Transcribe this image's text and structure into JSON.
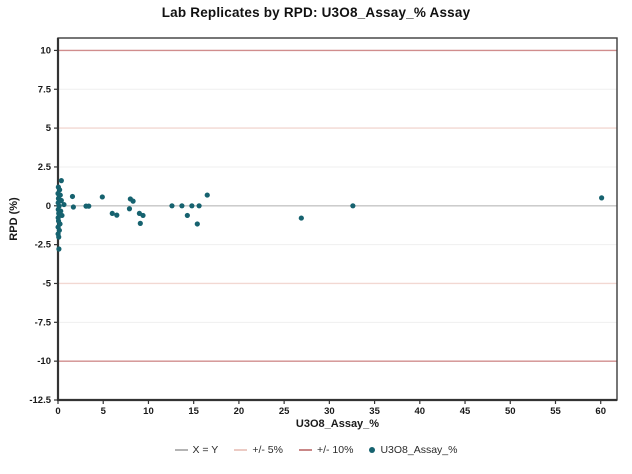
{
  "chart_data": {
    "type": "scatter",
    "title": "Lab Replicates by RPD: U3O8_Assay_% Assay",
    "xlabel": "U3O8_Assay_%",
    "ylabel": "RPD (%)",
    "xlim": [
      0,
      61.8
    ],
    "ylim": [
      -12.5,
      10.8
    ],
    "x_ticks": [
      0,
      5,
      10,
      15,
      20,
      25,
      30,
      35,
      40,
      45,
      50,
      55,
      60
    ],
    "y_ticks": [
      10,
      7.5,
      5,
      2.5,
      0,
      -2.5,
      -5,
      -7.5,
      -10,
      -12.5
    ],
    "grid": "horizontal reference lines only",
    "point_color": "#16626f",
    "minor_gridline_color": "#efefef",
    "minor_gridlines": [
      7.5,
      2.5,
      -2.5,
      -7.5
    ],
    "reference_lines": [
      {
        "name": "X = Y",
        "y": 0,
        "color": "#c4c4c4"
      },
      {
        "name": "+/- 5%",
        "y": 5,
        "color": "#f2d8d2"
      },
      {
        "name": "+/- 5%",
        "y": -5,
        "color": "#f2d8d2"
      },
      {
        "name": "+/- 10%",
        "y": 10,
        "color": "#d08d8d"
      },
      {
        "name": "+/- 10%",
        "y": -10,
        "color": "#d08d8d"
      }
    ],
    "series": [
      {
        "name": "U3O8_Assay_%",
        "points": [
          [
            0.04,
            1.2
          ],
          [
            0.37,
            1.62
          ],
          [
            0.18,
            1.03
          ],
          [
            0.0,
            0.79
          ],
          [
            0.25,
            0.69
          ],
          [
            0.05,
            0.47
          ],
          [
            0.37,
            0.34
          ],
          [
            0.02,
            0.19
          ],
          [
            0.66,
            0.08
          ],
          [
            0.12,
            -0.02
          ],
          [
            0.03,
            -0.24
          ],
          [
            0.3,
            -0.34
          ],
          [
            0.08,
            -0.49
          ],
          [
            0.44,
            -0.62
          ],
          [
            0.02,
            -0.77
          ],
          [
            0.06,
            -0.98
          ],
          [
            0.22,
            -1.17
          ],
          [
            0.01,
            -1.37
          ],
          [
            0.15,
            -1.58
          ],
          [
            0.01,
            -1.81
          ],
          [
            0.08,
            -2.01
          ],
          [
            0.1,
            -2.78
          ],
          [
            1.6,
            0.6
          ],
          [
            1.7,
            -0.08
          ],
          [
            3.1,
            -0.02
          ],
          [
            3.4,
            -0.02
          ],
          [
            4.9,
            0.57
          ],
          [
            6.0,
            -0.49
          ],
          [
            6.5,
            -0.6
          ],
          [
            7.9,
            -0.19
          ],
          [
            8.0,
            0.44
          ],
          [
            8.3,
            0.3
          ],
          [
            9.0,
            -0.49
          ],
          [
            9.4,
            -0.62
          ],
          [
            9.1,
            -1.13
          ],
          [
            12.6,
            0.0
          ],
          [
            13.7,
            0.0
          ],
          [
            14.8,
            0.0
          ],
          [
            15.6,
            0.0
          ],
          [
            14.3,
            -0.62
          ],
          [
            15.4,
            -1.17
          ],
          [
            16.5,
            0.69
          ],
          [
            26.9,
            -0.79
          ],
          [
            32.6,
            0.0
          ],
          [
            60.1,
            0.51
          ]
        ]
      }
    ],
    "legend": {
      "position": "bottom",
      "items": [
        {
          "label": "X = Y",
          "swatch": "line",
          "color": "#b4b4b4"
        },
        {
          "label": "+/- 5%",
          "swatch": "line",
          "color": "#eccbc4"
        },
        {
          "label": "+/- 10%",
          "swatch": "line",
          "color": "#c98787"
        },
        {
          "label": "U3O8_Assay_%",
          "swatch": "dot",
          "color": "#16626f"
        }
      ]
    },
    "axis_color": "#3c3c3c",
    "tick_label_color": "#1a1a1a"
  }
}
